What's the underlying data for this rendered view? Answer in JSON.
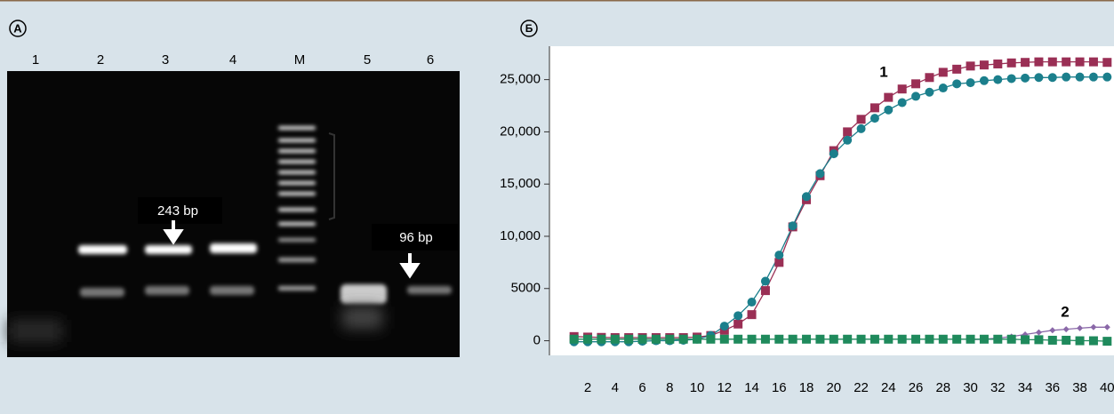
{
  "panel_a": {
    "label": "A",
    "lanes": [
      "1",
      "2",
      "3",
      "4",
      "M",
      "5",
      "6"
    ],
    "annotations": [
      "243 bp",
      "96 bp"
    ]
  },
  "chart_data": {
    "type": "line",
    "label": "Б",
    "x": [
      1,
      2,
      3,
      4,
      5,
      6,
      7,
      8,
      9,
      10,
      11,
      12,
      13,
      14,
      15,
      16,
      17,
      18,
      19,
      20,
      21,
      22,
      23,
      24,
      25,
      26,
      27,
      28,
      29,
      30,
      31,
      32,
      33,
      34,
      35,
      36,
      37,
      38,
      39,
      40
    ],
    "series": [
      {
        "color": "#9a2f55",
        "marker": "square",
        "values": [
          400,
          350,
          320,
          300,
          300,
          300,
          300,
          300,
          300,
          350,
          500,
          1000,
          1600,
          2500,
          4800,
          7500,
          10900,
          13500,
          15800,
          18200,
          20000,
          21200,
          22300,
          23300,
          24100,
          24600,
          25200,
          25700,
          26000,
          26300,
          26400,
          26500,
          26600,
          26650,
          26700,
          26700,
          26700,
          26700,
          26700,
          26650
        ]
      },
      {
        "color": "#1b7f8c",
        "marker": "circle",
        "values": [
          -100,
          -100,
          -100,
          -100,
          -100,
          -50,
          0,
          0,
          50,
          150,
          500,
          1400,
          2400,
          3700,
          5700,
          8200,
          11000,
          13800,
          16000,
          17900,
          19200,
          20300,
          21300,
          22100,
          22800,
          23400,
          23800,
          24200,
          24600,
          24700,
          24900,
          25000,
          25100,
          25150,
          25200,
          25200,
          25250,
          25250,
          25250,
          25250
        ]
      },
      {
        "color": "#8a68a8",
        "marker": "diamond",
        "values": [
          null,
          null,
          null,
          null,
          null,
          null,
          null,
          null,
          null,
          null,
          null,
          null,
          null,
          null,
          null,
          null,
          null,
          null,
          null,
          null,
          null,
          null,
          null,
          null,
          null,
          null,
          null,
          null,
          null,
          100,
          150,
          250,
          400,
          600,
          800,
          1000,
          1100,
          1200,
          1300,
          1300
        ]
      },
      {
        "color": "#1f8a5c",
        "marker": "square",
        "values": [
          150,
          150,
          150,
          150,
          150,
          150,
          150,
          150,
          150,
          150,
          150,
          150,
          150,
          150,
          150,
          150,
          150,
          150,
          150,
          150,
          150,
          150,
          150,
          150,
          150,
          150,
          150,
          150,
          150,
          150,
          150,
          150,
          150,
          100,
          100,
          50,
          50,
          0,
          0,
          -50
        ]
      }
    ],
    "annotations": [
      "1",
      "2"
    ],
    "xlim": [
      -0.8,
      40.5
    ],
    "ylim": [
      -1400,
      28200
    ],
    "xticks": [
      2,
      4,
      6,
      8,
      10,
      12,
      14,
      16,
      18,
      20,
      22,
      24,
      26,
      28,
      30,
      32,
      34,
      36,
      38,
      40
    ],
    "yticks": [
      0,
      5000,
      {
        "value": 10000,
        "label": "10,000"
      },
      {
        "value": 15000,
        "label": "15,000"
      },
      {
        "value": 20000,
        "label": "20,000"
      },
      {
        "value": 25000,
        "label": "25,000"
      }
    ]
  }
}
